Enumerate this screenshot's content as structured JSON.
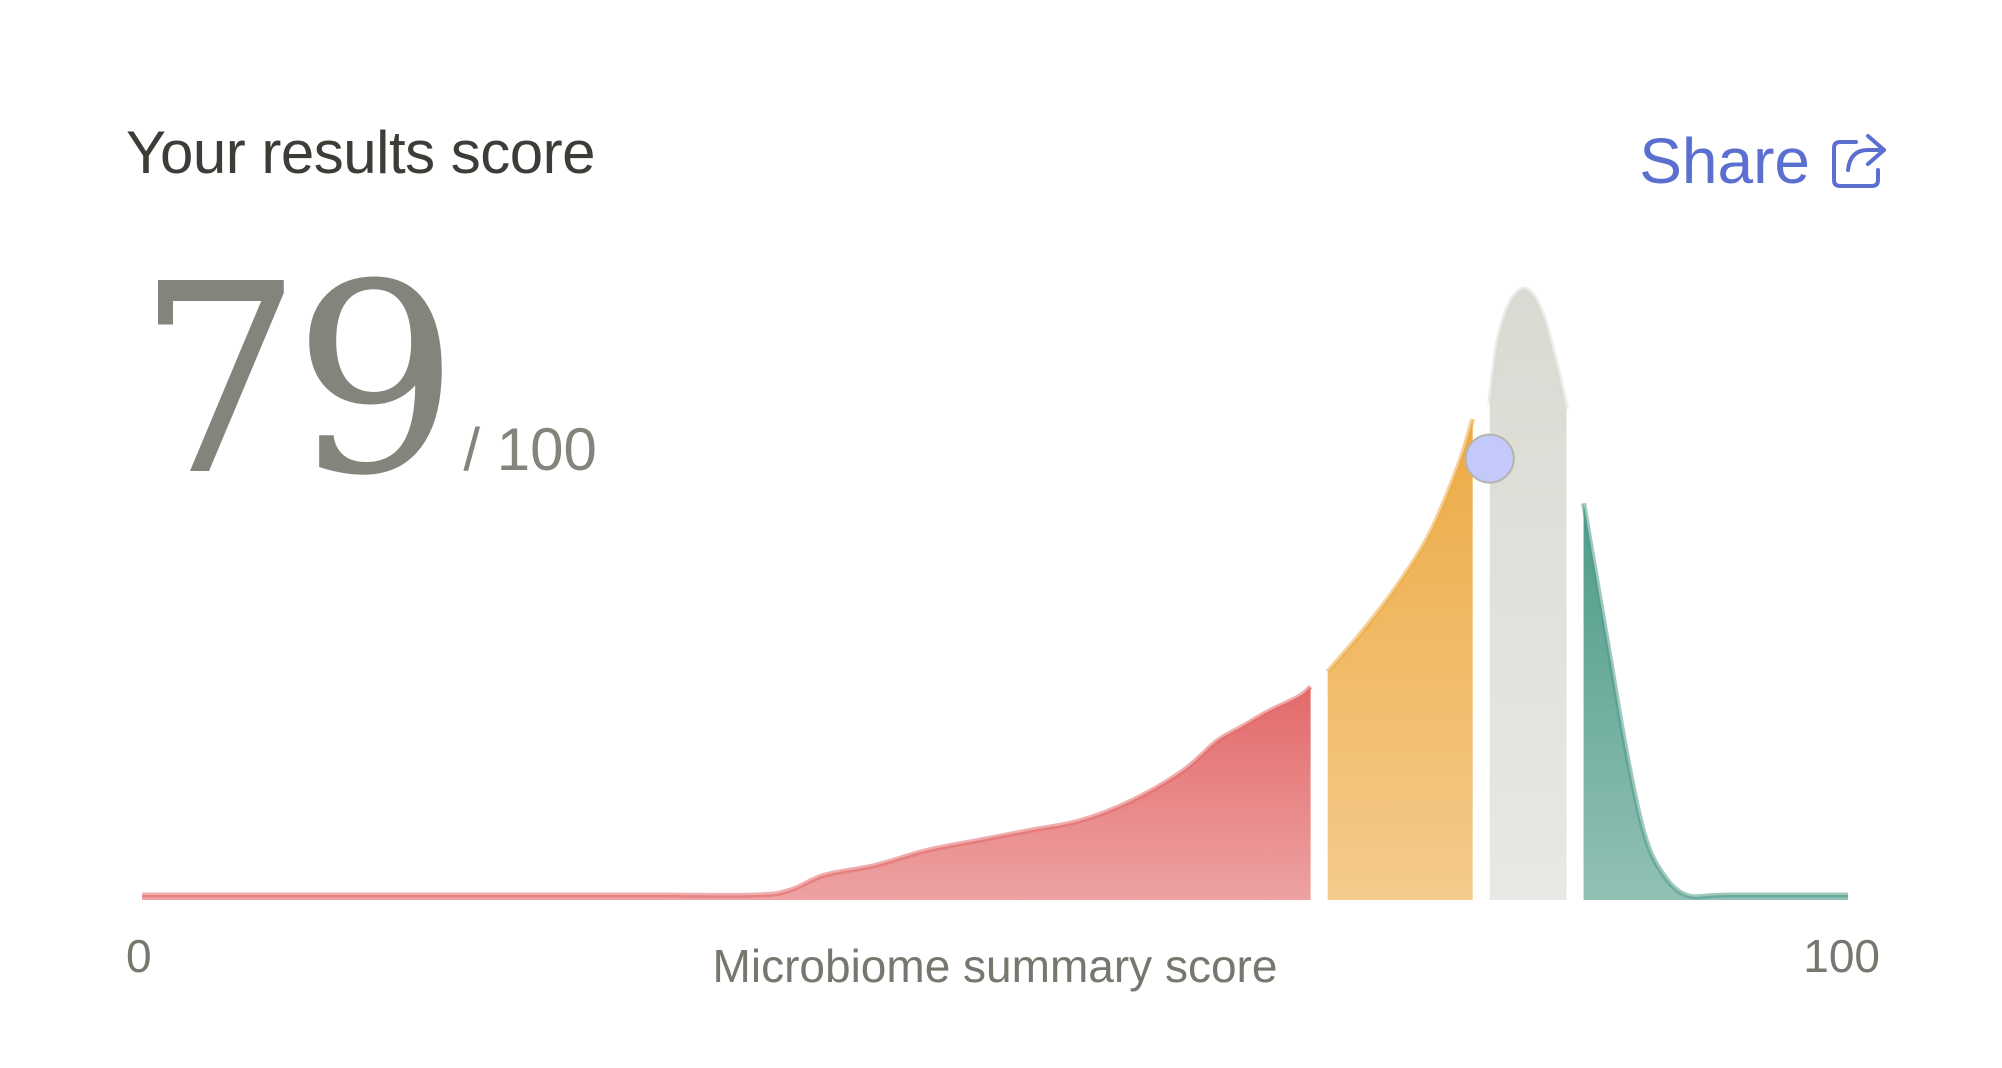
{
  "header": {
    "title": "Your results score",
    "share_label": "Share",
    "share_icon": "share-icon"
  },
  "score": {
    "value": "79",
    "max_label": "/ 100"
  },
  "chart_data": {
    "type": "area",
    "title": "",
    "xlabel": "Microbiome summary score",
    "ylabel": "",
    "xlim": [
      0,
      100
    ],
    "x_tick_labels": [
      "0",
      "100"
    ],
    "grid": false,
    "legend": "none",
    "marker": {
      "x": 79,
      "y": 89,
      "color": "#c3c9fb"
    },
    "series": [
      {
        "color": "#e3696a",
        "x": [
          0,
          10,
          20,
          30,
          36,
          38,
          40,
          43,
          46,
          49,
          52,
          55,
          58,
          61,
          63,
          64.5,
          66,
          67.8,
          68.5
        ],
        "y": [
          1,
          1,
          1,
          1,
          1,
          2,
          5,
          7,
          10,
          12,
          14,
          16,
          20,
          26,
          32,
          35,
          38,
          41,
          43
        ]
      },
      {
        "color": "#edab45",
        "x": [
          69.5,
          71.5,
          73.5,
          75.5,
          77.2,
          78.0
        ],
        "y": [
          46,
          54,
          63,
          74,
          88,
          97
        ]
      },
      {
        "color": "#dadad3",
        "x": [
          79.0,
          79.5,
          80.3,
          81.2,
          82.1,
          82.9,
          83.5
        ],
        "y": [
          100,
          113,
          121,
          123,
          118,
          108,
          99
        ]
      },
      {
        "color": "#4e9b88",
        "x": [
          84.5,
          85,
          86,
          87,
          88,
          89,
          90.5,
          93,
          100
        ],
        "y": [
          80,
          70,
          50,
          30,
          14,
          6,
          1,
          1,
          1
        ]
      }
    ]
  }
}
